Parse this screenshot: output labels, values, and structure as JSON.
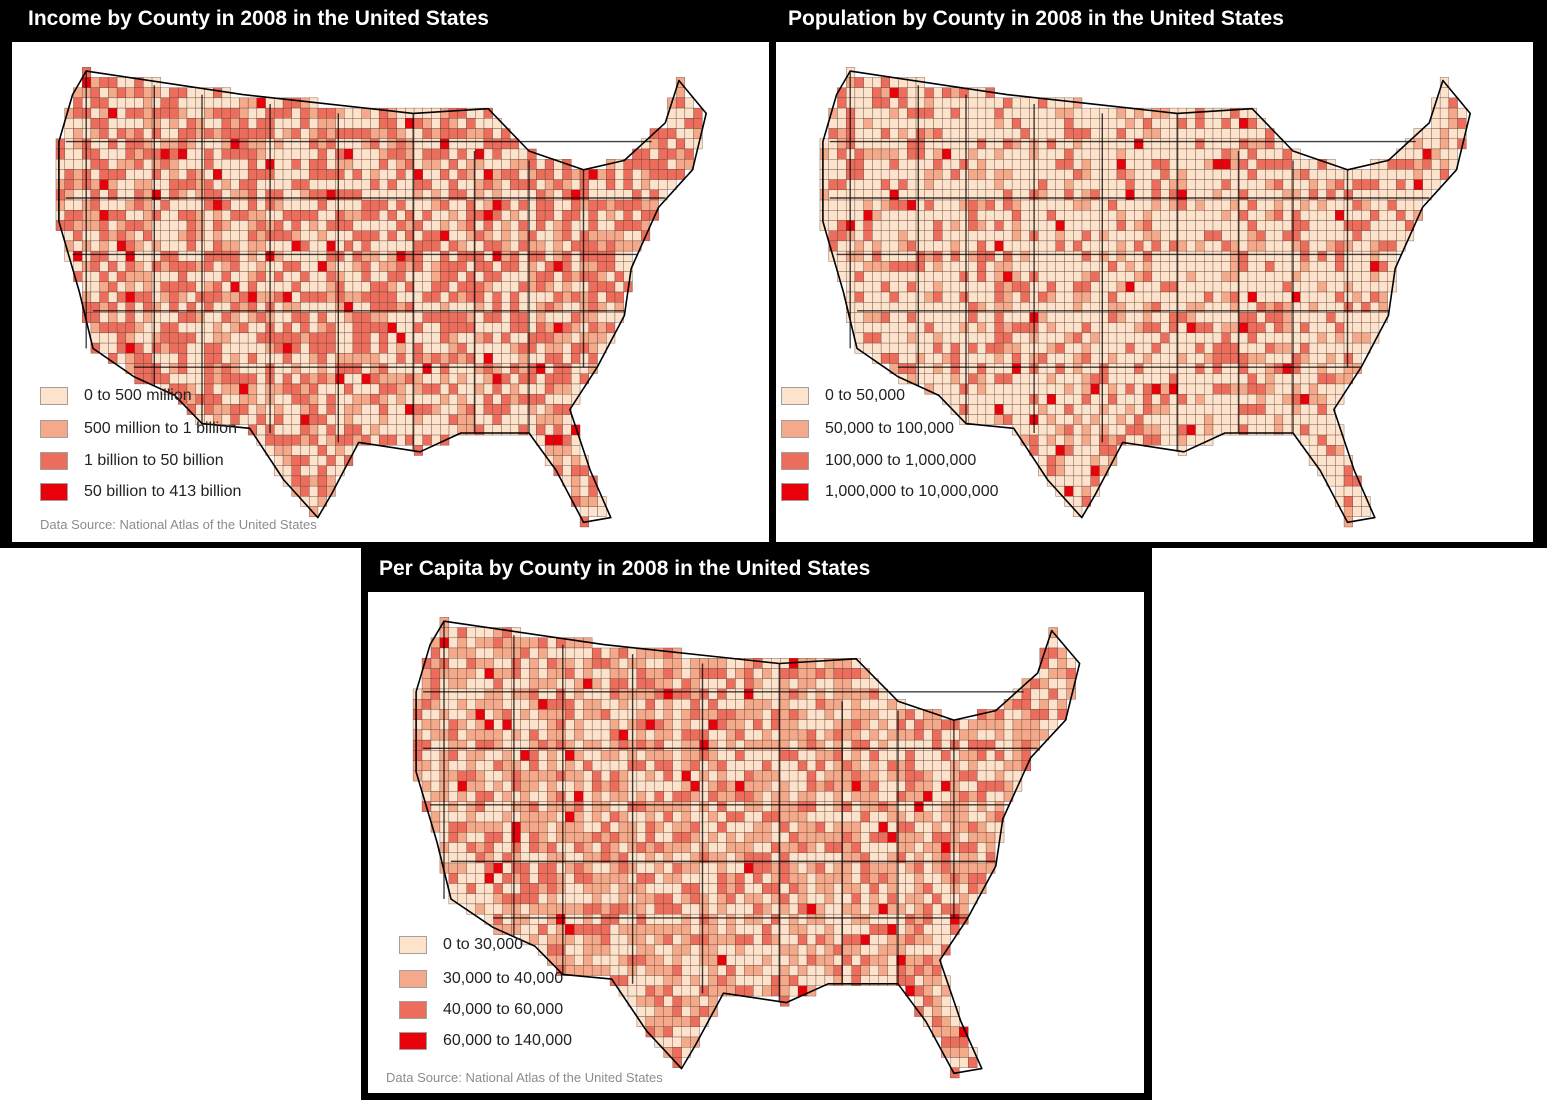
{
  "panels": [
    {
      "id": "income",
      "title": "Income by County in 2008 in the United States",
      "legend": [
        {
          "label": "0 to 500 million",
          "color": "#fde3cc"
        },
        {
          "label": "500 million to 1 billion",
          "color": "#f4a98a"
        },
        {
          "label": "1 billion to 50 billion",
          "color": "#ec6d5c"
        },
        {
          "label": "50 billion to 413 billion",
          "color": "#e8000b"
        }
      ],
      "source": "Data Source: National Atlas of the United States",
      "class_weights": [
        0.42,
        0.2,
        0.35,
        0.03
      ]
    },
    {
      "id": "population",
      "title": "Population by County in 2008 in the United States",
      "legend": [
        {
          "label": "0 to 50,000",
          "color": "#fde3cc"
        },
        {
          "label": "50,000 to 100,000",
          "color": "#f4a98a"
        },
        {
          "label": "100,000 to 1,000,000",
          "color": "#ec6d5c"
        },
        {
          "label": "1,000,000 to 10,000,000",
          "color": "#e8000b"
        }
      ],
      "source": "",
      "class_weights": [
        0.68,
        0.14,
        0.16,
        0.02
      ]
    },
    {
      "id": "per-capita",
      "title": "Per Capita by County in 2008 in the United States",
      "legend": [
        {
          "label": "0 to 30,000",
          "color": "#fde3cc"
        },
        {
          "label": "30,000 to 40,000",
          "color": "#f4a98a"
        },
        {
          "label": "40,000 to 60,000",
          "color": "#ec6d5c"
        },
        {
          "label": "60,000 to 140,000",
          "color": "#e8000b"
        }
      ],
      "source": "Data Source: National Atlas of the United States",
      "class_weights": [
        0.4,
        0.38,
        0.2,
        0.02
      ]
    }
  ]
}
